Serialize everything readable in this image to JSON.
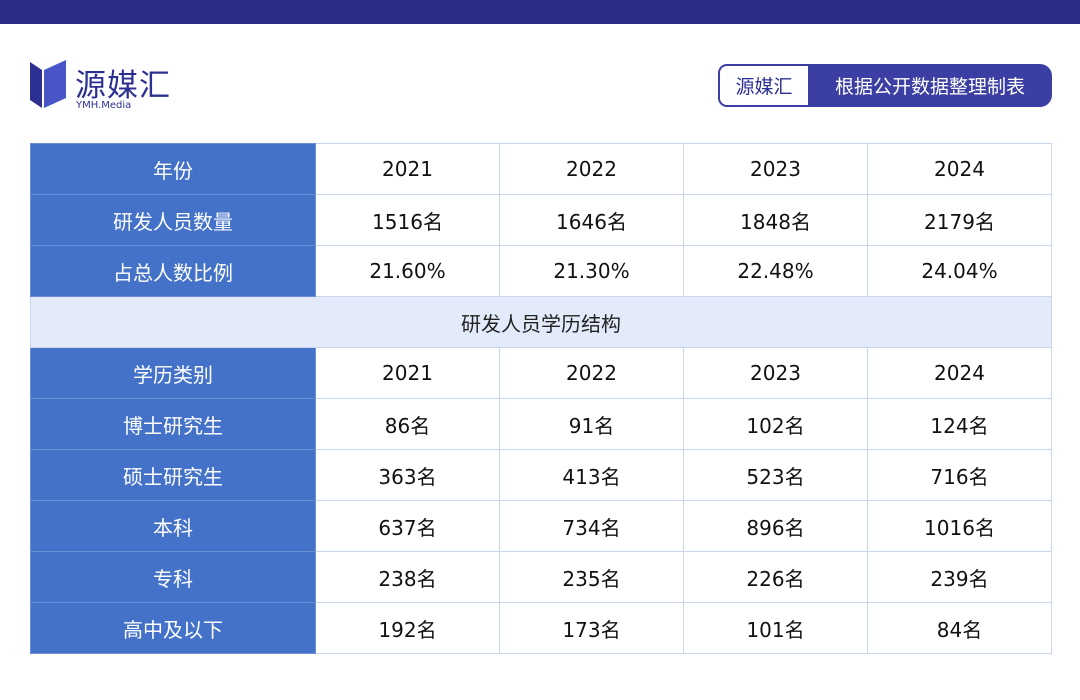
{
  "brand": {
    "name": "源媒汇",
    "sub": "YMH.Media",
    "primary_color": "#2b2e86",
    "header_color": "#4472c8"
  },
  "tag": {
    "left": "源媒汇",
    "right": "根据公开数据整理制表"
  },
  "table1": {
    "header": [
      "年份",
      "2021",
      "2022",
      "2023",
      "2024"
    ],
    "rows": [
      [
        "研发人员数量",
        "1516名",
        "1646名",
        "1848名",
        "2179名"
      ],
      [
        "占总人数比例",
        "21.60%",
        "21.30%",
        "22.48%",
        "24.04%"
      ]
    ]
  },
  "section_title": "研发人员学历结构",
  "table2": {
    "header": [
      "学历类别",
      "2021",
      "2022",
      "2023",
      "2024"
    ],
    "rows": [
      [
        "博士研究生",
        "86名",
        "91名",
        "102名",
        "124名"
      ],
      [
        "硕士研究生",
        "363名",
        "413名",
        "523名",
        "716名"
      ],
      [
        "本科",
        "637名",
        "734名",
        "896名",
        "1016名"
      ],
      [
        "专科",
        "238名",
        "235名",
        "226名",
        "239名"
      ],
      [
        "高中及以下",
        "192名",
        "173名",
        "101名",
        "84名"
      ]
    ]
  }
}
